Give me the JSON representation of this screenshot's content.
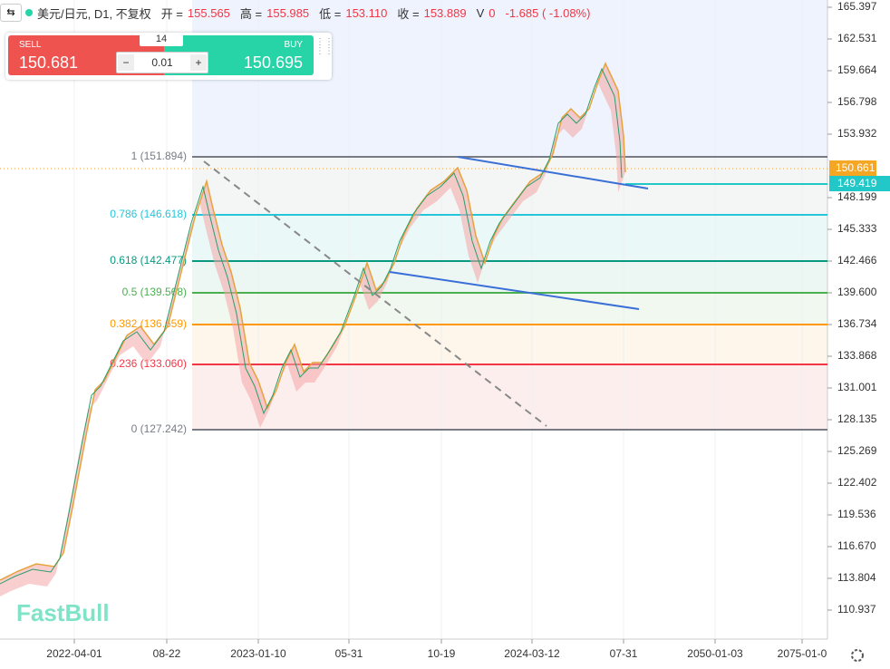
{
  "header": {
    "symbol": "美元/日元, D1, 不复权",
    "items": [
      "开 =",
      "155.565",
      "高 =",
      "155.985",
      "低 =",
      "153.110",
      "收 =",
      "153.889",
      "V",
      "0",
      "-1.685 ( -1.08%)"
    ]
  },
  "trade_panel": {
    "sell_label": "SELL",
    "sell_price": "150.681",
    "spread": "14",
    "quantity": "0.01",
    "buy_label": "BUY",
    "buy_price": "150.695"
  },
  "price_axis": {
    "labels": [
      "165.397",
      "162.531",
      "159.664",
      "156.798",
      "153.932",
      "",
      "148.199",
      "145.333",
      "142.466",
      "139.600",
      "136.734",
      "133.868",
      "131.001",
      "128.135",
      "125.269",
      "122.402",
      "119.536",
      "116.670",
      "113.804",
      "110.937"
    ],
    "current_price": "150.661",
    "line_price": "149.419"
  },
  "fibonacci": [
    "1 (151.894)",
    "0.786 (146.618)",
    "0.618 (142.477)",
    "0.5 (139.568)",
    "0.382 (136.659)",
    "0.236 (133.060)",
    "0 (127.242)"
  ],
  "time_axis": [
    "2022-04-01",
    "08-22",
    "2023-01-10",
    "05-31",
    "10-19",
    "2024-03-12",
    "07-31",
    "2050-01-03",
    "2075-01-0"
  ],
  "watermark": "FastBull"
}
